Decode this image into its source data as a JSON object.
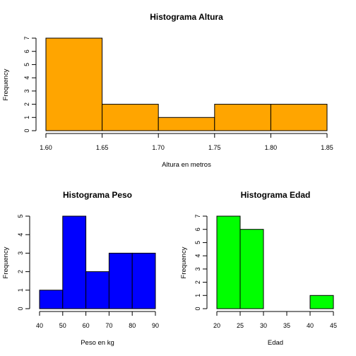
{
  "chart_data": [
    {
      "type": "bar",
      "title": "Histograma Altura",
      "xlabel": "Altura en metros",
      "ylabel": "Frequency",
      "bins": [
        [
          1.6,
          1.65
        ],
        [
          1.65,
          1.7
        ],
        [
          1.7,
          1.75
        ],
        [
          1.75,
          1.8
        ],
        [
          1.8,
          1.85
        ]
      ],
      "values": [
        7,
        2,
        1,
        2,
        2
      ],
      "xticks": [
        "1.60",
        "1.65",
        "1.70",
        "1.75",
        "1.80",
        "1.85"
      ],
      "yticks": [
        "0",
        "1",
        "2",
        "3",
        "4",
        "5",
        "6",
        "7"
      ],
      "xlim": [
        1.6,
        1.85
      ],
      "ylim": [
        0,
        7
      ],
      "color": "#ffa500",
      "grid": false
    },
    {
      "type": "bar",
      "title": "Histograma Peso",
      "xlabel": "Peso en kg",
      "ylabel": "Frequency",
      "bins": [
        [
          40,
          50
        ],
        [
          50,
          60
        ],
        [
          60,
          70
        ],
        [
          70,
          80
        ],
        [
          80,
          90
        ]
      ],
      "values": [
        1,
        5,
        2,
        3,
        3
      ],
      "xticks": [
        "40",
        "50",
        "60",
        "70",
        "80",
        "90"
      ],
      "yticks": [
        "0",
        "1",
        "2",
        "3",
        "4",
        "5"
      ],
      "xlim": [
        40,
        90
      ],
      "ylim": [
        0,
        5
      ],
      "color": "#0000ff",
      "grid": false
    },
    {
      "type": "bar",
      "title": "Histograma Edad",
      "xlabel": "Edad",
      "ylabel": "Frequency",
      "bins": [
        [
          20,
          25
        ],
        [
          25,
          30
        ],
        [
          30,
          35
        ],
        [
          35,
          40
        ],
        [
          40,
          45
        ]
      ],
      "values": [
        7,
        6,
        0,
        0,
        1
      ],
      "xticks": [
        "20",
        "25",
        "30",
        "35",
        "40",
        "45"
      ],
      "yticks": [
        "0",
        "1",
        "2",
        "3",
        "4",
        "5",
        "6",
        "7"
      ],
      "xlim": [
        20,
        45
      ],
      "ylim": [
        0,
        7
      ],
      "color": "#00ff00",
      "grid": false
    }
  ]
}
